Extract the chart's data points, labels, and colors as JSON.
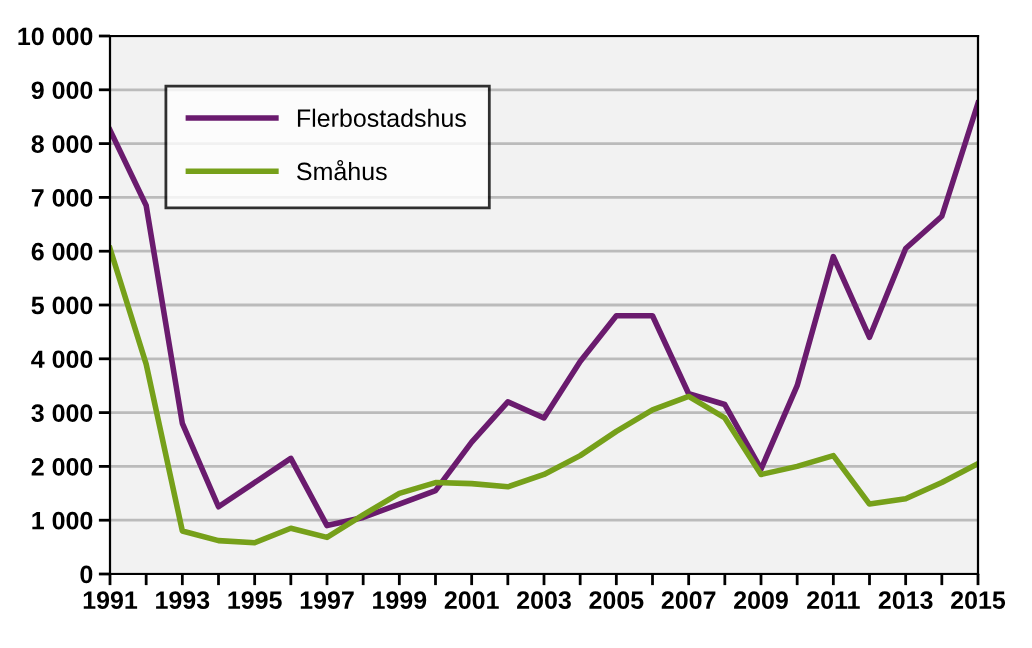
{
  "chart_data": {
    "type": "line",
    "x": [
      1991,
      1992,
      1993,
      1994,
      1995,
      1996,
      1997,
      1998,
      1999,
      2000,
      2001,
      2002,
      2003,
      2004,
      2005,
      2006,
      2007,
      2008,
      2009,
      2010,
      2011,
      2012,
      2013,
      2014,
      2015
    ],
    "series": [
      {
        "name": "Flerbostadshus",
        "color": "#6a1b6e",
        "values": [
          8250,
          6850,
          2800,
          1250,
          1700,
          2150,
          900,
          1050,
          1300,
          1550,
          2450,
          3200,
          2900,
          3950,
          4800,
          4800,
          3350,
          3150,
          1950,
          3500,
          5900,
          4400,
          6050,
          6650,
          8750
        ]
      },
      {
        "name": "Småhus",
        "color": "#76a01a",
        "values": [
          6050,
          3900,
          800,
          620,
          580,
          850,
          680,
          1100,
          1500,
          1700,
          1680,
          1620,
          1850,
          2200,
          2650,
          3050,
          3300,
          2900,
          1850,
          2000,
          2200,
          1300,
          1400,
          1700,
          2050
        ]
      }
    ],
    "xlim": [
      1991,
      2015
    ],
    "xticks": [
      1991,
      {
        "value": 1992,
        "label": null
      },
      1993,
      {
        "value": 1994,
        "label": null
      },
      1995,
      {
        "value": 1996,
        "label": null
      },
      1997,
      {
        "value": 1998,
        "label": null
      },
      1999,
      {
        "value": 2000,
        "label": null
      },
      2001,
      {
        "value": 2002,
        "label": null
      },
      2003,
      {
        "value": 2004,
        "label": null
      },
      2005,
      {
        "value": 2006,
        "label": null
      },
      2007,
      {
        "value": 2008,
        "label": null
      },
      2009,
      {
        "value": 2010,
        "label": null
      },
      2011,
      {
        "value": 2012,
        "label": null
      },
      2013,
      {
        "value": 2014,
        "label": null
      },
      2015
    ],
    "ylim": [
      0,
      10000
    ],
    "yticks": [
      0,
      {
        "value": 1000,
        "label": "1 000"
      },
      {
        "value": 2000,
        "label": "2 000"
      },
      {
        "value": 3000,
        "label": "3 000"
      },
      {
        "value": 4000,
        "label": "4 000"
      },
      {
        "value": 5000,
        "label": "5 000"
      },
      {
        "value": 6000,
        "label": "6 000"
      },
      {
        "value": 7000,
        "label": "7 000"
      },
      {
        "value": 8000,
        "label": "8 000"
      },
      {
        "value": 9000,
        "label": "9 000"
      },
      {
        "value": 10000,
        "label": "10 000"
      }
    ],
    "grid": "y",
    "legend": "top left",
    "marker": "none",
    "line_style": "solid"
  }
}
